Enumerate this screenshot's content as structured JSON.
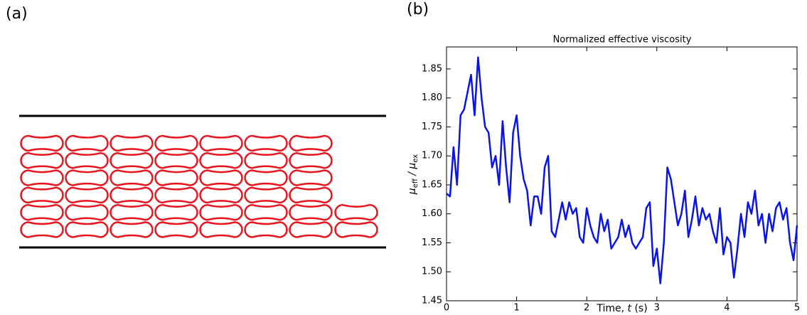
{
  "panels": {
    "a": "(a)",
    "b": "(b)"
  },
  "chart_data": {
    "type": "line",
    "title": "Normalized effective viscosity",
    "xlabel": [
      "Time, ",
      "t",
      " (s)"
    ],
    "ylabel": [
      "μ",
      "eff",
      " / μ",
      "ex"
    ],
    "xlim": [
      0,
      5
    ],
    "xticks": [
      0,
      1,
      2,
      3,
      4,
      5
    ],
    "ylim": [
      1.45,
      1.888
    ],
    "yticks": [
      1.45,
      {
        "value": 1.5,
        "label": "1.50"
      },
      1.55,
      {
        "value": 1.6,
        "label": "1.60"
      },
      1.65,
      {
        "value": 1.7,
        "label": "1.70"
      },
      1.75,
      {
        "value": 1.8,
        "label": "1.80"
      },
      1.85
    ],
    "color": "#0a14e8",
    "x": [
      0,
      0.05,
      0.1,
      0.15,
      0.2,
      0.25,
      0.3,
      0.35,
      0.4,
      0.45,
      0.5,
      0.55,
      0.6,
      0.65,
      0.7,
      0.75,
      0.8,
      0.85,
      0.9,
      0.95,
      1,
      1.05,
      1.1,
      1.15,
      1.2,
      1.25,
      1.3,
      1.35,
      1.4,
      1.45,
      1.5,
      1.55,
      1.6,
      1.65,
      1.7,
      1.75,
      1.8,
      1.85,
      1.9,
      1.95,
      2,
      2.05,
      2.1,
      2.15,
      2.2,
      2.25,
      2.3,
      2.35,
      2.4,
      2.45,
      2.5,
      2.55,
      2.6,
      2.65,
      2.7,
      2.75,
      2.8,
      2.85,
      2.9,
      2.95,
      3,
      3.05,
      3.1,
      3.15,
      3.2,
      3.25,
      3.3,
      3.35,
      3.4,
      3.45,
      3.5,
      3.55,
      3.6,
      3.65,
      3.7,
      3.75,
      3.8,
      3.85,
      3.9,
      3.95,
      4,
      4.05,
      4.1,
      4.15,
      4.2,
      4.25,
      4.3,
      4.35,
      4.4,
      4.45,
      4.5,
      4.55,
      4.6,
      4.65,
      4.7,
      4.75,
      4.8,
      4.85,
      4.9,
      4.95,
      5
    ],
    "values": [
      1.635,
      1.63,
      1.715,
      1.65,
      1.77,
      1.78,
      1.81,
      1.84,
      1.77,
      1.87,
      1.8,
      1.75,
      1.74,
      1.68,
      1.7,
      1.65,
      1.76,
      1.68,
      1.62,
      1.74,
      1.77,
      1.7,
      1.66,
      1.64,
      1.58,
      1.63,
      1.63,
      1.6,
      1.68,
      1.7,
      1.57,
      1.56,
      1.59,
      1.62,
      1.59,
      1.62,
      1.6,
      1.61,
      1.56,
      1.55,
      1.61,
      1.58,
      1.56,
      1.55,
      1.6,
      1.57,
      1.59,
      1.54,
      1.55,
      1.56,
      1.59,
      1.56,
      1.58,
      1.55,
      1.54,
      1.55,
      1.56,
      1.61,
      1.62,
      1.51,
      1.54,
      1.48,
      1.55,
      1.68,
      1.66,
      1.62,
      1.58,
      1.6,
      1.64,
      1.56,
      1.59,
      1.63,
      1.58,
      1.61,
      1.59,
      1.6,
      1.57,
      1.55,
      1.61,
      1.53,
      1.56,
      1.55,
      1.49,
      1.54,
      1.6,
      1.56,
      1.62,
      1.6,
      1.64,
      1.58,
      1.6,
      1.55,
      1.6,
      1.57,
      1.61,
      1.62,
      1.59,
      1.61,
      1.55,
      1.52,
      1.58
    ]
  }
}
